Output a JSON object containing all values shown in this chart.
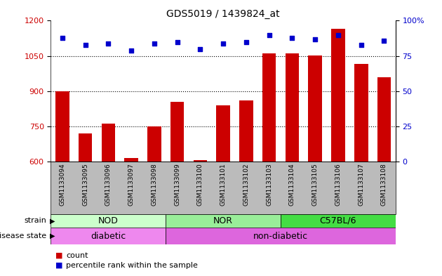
{
  "title": "GDS5019 / 1439824_at",
  "samples": [
    "GSM1133094",
    "GSM1133095",
    "GSM1133096",
    "GSM1133097",
    "GSM1133098",
    "GSM1133099",
    "GSM1133100",
    "GSM1133101",
    "GSM1133102",
    "GSM1133103",
    "GSM1133104",
    "GSM1133105",
    "GSM1133106",
    "GSM1133107",
    "GSM1133108"
  ],
  "counts": [
    900,
    720,
    760,
    615,
    748,
    855,
    605,
    840,
    860,
    1060,
    1060,
    1052,
    1165,
    1015,
    960
  ],
  "percentiles": [
    88,
    83,
    84,
    79,
    84,
    85,
    80,
    84,
    85,
    90,
    88,
    87,
    90,
    83,
    86
  ],
  "bar_color": "#cc0000",
  "dot_color": "#0000cc",
  "ylim_left": [
    600,
    1200
  ],
  "ylim_right": [
    0,
    100
  ],
  "yticks_left": [
    600,
    750,
    900,
    1050,
    1200
  ],
  "yticks_right": [
    0,
    25,
    50,
    75,
    100
  ],
  "ytick_right_labels": [
    "0",
    "25",
    "50",
    "75",
    "100%"
  ],
  "strain_groups": [
    {
      "label": "NOD",
      "start": 0,
      "end": 5,
      "color": "#ccffcc"
    },
    {
      "label": "NOR",
      "start": 5,
      "end": 10,
      "color": "#99ee99"
    },
    {
      "label": "C57BL/6",
      "start": 10,
      "end": 15,
      "color": "#44dd44"
    }
  ],
  "disease_groups": [
    {
      "label": "diabetic",
      "start": 0,
      "end": 5,
      "color": "#ee88ee"
    },
    {
      "label": "non-diabetic",
      "start": 5,
      "end": 15,
      "color": "#dd66dd"
    }
  ],
  "strain_label": "strain",
  "disease_label": "disease state",
  "legend_count": "count",
  "legend_percentile": "percentile rank within the sample",
  "bg_color": "#ffffff",
  "plot_bg_color": "#ffffff",
  "xtick_bg_color": "#bbbbbb",
  "grid_color": "#000000",
  "grid_linestyle": ":",
  "grid_linewidth": 0.8,
  "grid_yticks": [
    750,
    900,
    1050
  ]
}
